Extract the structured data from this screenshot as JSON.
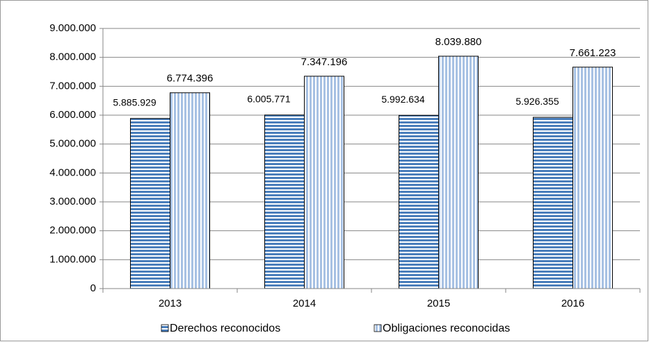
{
  "chart_data": {
    "type": "bar",
    "categories": [
      "2013",
      "2014",
      "2015",
      "2016"
    ],
    "series": [
      {
        "name": "Derechos reconocidos",
        "color": "#4a7ebb",
        "pattern": "horizontal",
        "values": [
          5885929,
          6005771,
          5992634,
          5926355
        ],
        "value_labels": [
          "5.885.929",
          "6.005.771",
          "5.992.634",
          "5.926.355"
        ]
      },
      {
        "name": "Obligaciones reconocidas",
        "color": "#a7c1e3",
        "pattern": "vertical",
        "values": [
          6774396,
          7347196,
          8039880,
          7661223
        ],
        "value_labels": [
          "6.774.396",
          "7.347.196",
          "8.039.880",
          "7.661.223"
        ]
      }
    ],
    "ylim": [
      0,
      9000000
    ],
    "yticks": [
      {
        "value": 0,
        "label": "0"
      },
      {
        "value": 1000000,
        "label": "1.000.000"
      },
      {
        "value": 2000000,
        "label": "2.000.000"
      },
      {
        "value": 3000000,
        "label": "3.000.000"
      },
      {
        "value": 4000000,
        "label": "4.000.000"
      },
      {
        "value": 5000000,
        "label": "5.000.000"
      },
      {
        "value": 6000000,
        "label": "6.000.000"
      },
      {
        "value": 7000000,
        "label": "7.000.000"
      },
      {
        "value": 8000000,
        "label": "8.000.000"
      },
      {
        "value": 9000000,
        "label": "9.000.000"
      }
    ],
    "grid": true,
    "legend": "bottom"
  }
}
